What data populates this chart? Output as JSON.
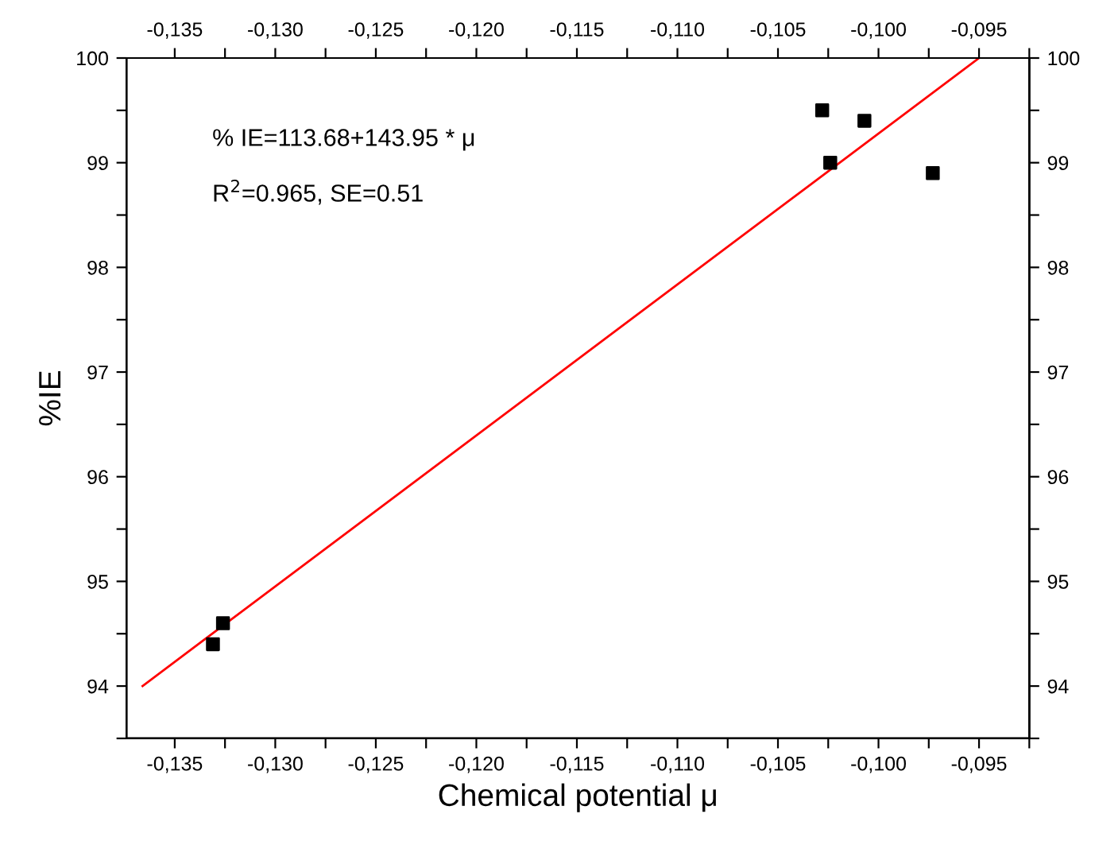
{
  "chart_data": {
    "type": "scatter",
    "xlabel": "Chemical potential μ",
    "ylabel": "%IE",
    "annotations": [
      "% IE=113.68+143.95 * μ",
      "R$^{2}$=0.965, SE=0.51"
    ],
    "series": [
      {
        "color": "#000000",
        "marker": "square",
        "x": [
          -0.1331,
          -0.1326,
          -0.1028,
          -0.1024,
          -0.1007,
          -0.0973
        ],
        "values": [
          94.4,
          94.6,
          99.5,
          99.0,
          99.4,
          98.9
        ]
      },
      {
        "type": "line",
        "color": "#ff0000",
        "marker": "none",
        "line_style": "solid",
        "x": [
          -0.1366,
          -0.095
        ],
        "values": [
          94.0,
          100.0
        ]
      }
    ],
    "xlim": [
      -0.1374,
      -0.0925
    ],
    "ylim": [
      93.5,
      100
    ],
    "x2lim": [
      -0.1374,
      -0.0925
    ],
    "y2lim": [
      93.5,
      100
    ],
    "xticks": [
      {
        "value": -0.135,
        "label": "-0,135"
      },
      {
        "value": -0.1325,
        "label": null
      },
      {
        "value": -0.13,
        "label": "-0,130"
      },
      {
        "value": -0.1275,
        "label": null
      },
      {
        "value": -0.125,
        "label": "-0,125"
      },
      {
        "value": -0.1225,
        "label": null
      },
      {
        "value": -0.12,
        "label": "-0,120"
      },
      {
        "value": -0.1175,
        "label": null
      },
      {
        "value": -0.115,
        "label": "-0,115"
      },
      {
        "value": -0.1125,
        "label": null
      },
      {
        "value": -0.11,
        "label": "-0,110"
      },
      {
        "value": -0.1075,
        "label": null
      },
      {
        "value": -0.105,
        "label": "-0,105"
      },
      {
        "value": -0.1025,
        "label": null
      },
      {
        "value": -0.1,
        "label": "-0,100"
      },
      {
        "value": -0.0975,
        "label": null
      },
      {
        "value": -0.095,
        "label": "-0,095"
      },
      {
        "value": -0.0925,
        "label": null
      }
    ],
    "x2ticks": [
      {
        "value": -0.135,
        "label": "-0,135"
      },
      {
        "value": -0.1325,
        "label": null
      },
      {
        "value": -0.13,
        "label": "-0,130"
      },
      {
        "value": -0.1275,
        "label": null
      },
      {
        "value": -0.125,
        "label": "-0,125"
      },
      {
        "value": -0.1225,
        "label": null
      },
      {
        "value": -0.12,
        "label": "-0,120"
      },
      {
        "value": -0.1175,
        "label": null
      },
      {
        "value": -0.115,
        "label": "-0,115"
      },
      {
        "value": -0.1125,
        "label": null
      },
      {
        "value": -0.11,
        "label": "-0,110"
      },
      {
        "value": -0.1075,
        "label": null
      },
      {
        "value": -0.105,
        "label": "-0,105"
      },
      {
        "value": -0.1025,
        "label": null
      },
      {
        "value": -0.1,
        "label": "-0,100"
      },
      {
        "value": -0.0975,
        "label": null
      },
      {
        "value": -0.095,
        "label": "-0,095"
      },
      {
        "value": -0.0925,
        "label": null
      }
    ],
    "yticks": [
      {
        "value": 93.5,
        "label": null
      },
      94,
      {
        "value": 94.5,
        "label": null
      },
      95,
      {
        "value": 95.5,
        "label": null
      },
      96,
      {
        "value": 96.5,
        "label": null
      },
      97,
      {
        "value": 97.5,
        "label": null
      },
      98,
      {
        "value": 98.5,
        "label": null
      },
      99,
      {
        "value": 99.5,
        "label": null
      },
      100
    ],
    "y2ticks": [
      {
        "value": 93.5,
        "label": null
      },
      94,
      {
        "value": 94.5,
        "label": null
      },
      95,
      {
        "value": 95.5,
        "label": null
      },
      96,
      {
        "value": 96.5,
        "label": null
      },
      97,
      {
        "value": 97.5,
        "label": null
      },
      98,
      {
        "value": 98.5,
        "label": null
      },
      99,
      {
        "value": 99.5,
        "label": null
      },
      100
    ],
    "grid": false,
    "legend": false
  }
}
